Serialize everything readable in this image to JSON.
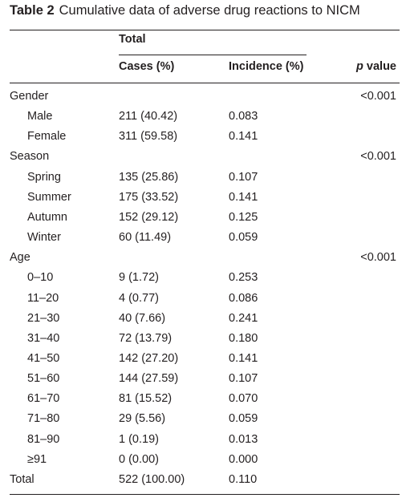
{
  "caption": {
    "label": "Table 2",
    "title": "Cumulative data of adverse drug reactions to NICM"
  },
  "header": {
    "group": "Total",
    "cases": "Cases (%)",
    "incidence": "Incidence (%)",
    "p_italic": "p",
    "p_rest": " value"
  },
  "rows": [
    {
      "label": "Gender",
      "cases": "",
      "incidence": "",
      "p": "<0.001",
      "indent": false
    },
    {
      "label": "Male",
      "cases": "211 (40.42)",
      "incidence": "0.083",
      "p": "",
      "indent": true
    },
    {
      "label": "Female",
      "cases": "311 (59.58)",
      "incidence": "0.141",
      "p": "",
      "indent": true
    },
    {
      "label": "Season",
      "cases": "",
      "incidence": "",
      "p": "<0.001",
      "indent": false
    },
    {
      "label": "Spring",
      "cases": "135 (25.86)",
      "incidence": "0.107",
      "p": "",
      "indent": true
    },
    {
      "label": "Summer",
      "cases": "175 (33.52)",
      "incidence": "0.141",
      "p": "",
      "indent": true
    },
    {
      "label": "Autumn",
      "cases": "152 (29.12)",
      "incidence": "0.125",
      "p": "",
      "indent": true
    },
    {
      "label": "Winter",
      "cases": "60 (11.49)",
      "incidence": "0.059",
      "p": "",
      "indent": true
    },
    {
      "label": "Age",
      "cases": "",
      "incidence": "",
      "p": "<0.001",
      "indent": false
    },
    {
      "label": "0–10",
      "cases": "9 (1.72)",
      "incidence": "0.253",
      "p": "",
      "indent": true
    },
    {
      "label": "11–20",
      "cases": "4 (0.77)",
      "incidence": "0.086",
      "p": "",
      "indent": true
    },
    {
      "label": "21–30",
      "cases": "40 (7.66)",
      "incidence": "0.241",
      "p": "",
      "indent": true
    },
    {
      "label": "31–40",
      "cases": "72 (13.79)",
      "incidence": "0.180",
      "p": "",
      "indent": true
    },
    {
      "label": "41–50",
      "cases": "142 (27.20)",
      "incidence": "0.141",
      "p": "",
      "indent": true
    },
    {
      "label": "51–60",
      "cases": "144 (27.59)",
      "incidence": "0.107",
      "p": "",
      "indent": true
    },
    {
      "label": "61–70",
      "cases": "81 (15.52)",
      "incidence": "0.070",
      "p": "",
      "indent": true
    },
    {
      "label": "71–80",
      "cases": "29 (5.56)",
      "incidence": "0.059",
      "p": "",
      "indent": true
    },
    {
      "label": "81–90",
      "cases": "1 (0.19)",
      "incidence": "0.013",
      "p": "",
      "indent": true
    },
    {
      "label": "≥91",
      "cases": "0 (0.00)",
      "incidence": "0.000",
      "p": "",
      "indent": true
    },
    {
      "label": "Total",
      "cases": "522 (100.00)",
      "incidence": "0.110",
      "p": "",
      "indent": false
    }
  ]
}
